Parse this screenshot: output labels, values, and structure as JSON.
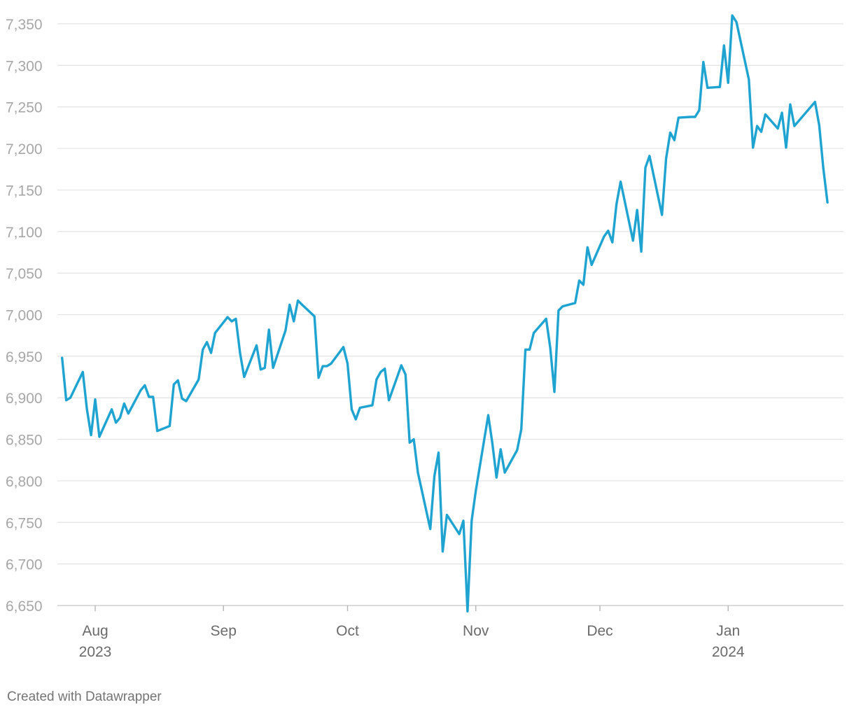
{
  "chart_data": {
    "type": "line",
    "title": "",
    "xlabel": "",
    "ylabel": "",
    "ylim": [
      6650,
      7350
    ],
    "yticks": [
      "6,650",
      "6,700",
      "6,750",
      "6,800",
      "6,850",
      "6,900",
      "6,950",
      "7,000",
      "7,050",
      "7,100",
      "7,150",
      "7,200",
      "7,250",
      "7,300",
      "7,350"
    ],
    "xticks": [
      {
        "date": "2023-08-01",
        "label": "Aug",
        "sublabel": "2023"
      },
      {
        "date": "2023-09-01",
        "label": "Sep",
        "sublabel": ""
      },
      {
        "date": "2023-10-01",
        "label": "Oct",
        "sublabel": ""
      },
      {
        "date": "2023-11-01",
        "label": "Nov",
        "sublabel": ""
      },
      {
        "date": "2023-12-01",
        "label": "Dec",
        "sublabel": ""
      },
      {
        "date": "2024-01-01",
        "label": "Jan",
        "sublabel": "2024"
      }
    ],
    "grid": true,
    "line_color": "#1fa3d0",
    "series": [
      {
        "x": [
          "2023-07-24",
          "2023-07-25",
          "2023-07-26",
          "2023-07-29",
          "2023-07-30",
          "2023-07-31",
          "2023-08-01",
          "2023-08-02",
          "2023-08-05",
          "2023-08-06",
          "2023-08-07",
          "2023-08-08",
          "2023-08-09",
          "2023-08-12",
          "2023-08-13",
          "2023-08-14",
          "2023-08-15",
          "2023-08-16",
          "2023-08-19",
          "2023-08-20",
          "2023-08-21",
          "2023-08-22",
          "2023-08-23",
          "2023-08-26",
          "2023-08-27",
          "2023-08-28",
          "2023-08-29",
          "2023-08-30",
          "2023-09-02",
          "2023-09-03",
          "2023-09-04",
          "2023-09-05",
          "2023-09-06",
          "2023-09-09",
          "2023-09-10",
          "2023-09-11",
          "2023-09-12",
          "2023-09-13",
          "2023-09-16",
          "2023-09-17",
          "2023-09-18",
          "2023-09-19",
          "2023-09-20",
          "2023-09-23",
          "2023-09-24",
          "2023-09-25",
          "2023-09-26",
          "2023-09-27",
          "2023-09-30",
          "2023-10-01",
          "2023-10-02",
          "2023-10-03",
          "2023-10-04",
          "2023-10-07",
          "2023-10-08",
          "2023-10-09",
          "2023-10-10",
          "2023-10-11",
          "2023-10-14",
          "2023-10-15",
          "2023-10-16",
          "2023-10-17",
          "2023-10-18",
          "2023-10-21",
          "2023-10-22",
          "2023-10-23",
          "2023-10-24",
          "2023-10-25",
          "2023-10-28",
          "2023-10-29",
          "2023-10-30",
          "2023-10-31",
          "2023-11-01",
          "2023-11-04",
          "2023-11-05",
          "2023-11-06",
          "2023-11-07",
          "2023-11-08",
          "2023-11-11",
          "2023-11-12",
          "2023-11-13",
          "2023-11-14",
          "2023-11-15",
          "2023-11-18",
          "2023-11-19",
          "2023-11-20",
          "2023-11-21",
          "2023-11-22",
          "2023-11-25",
          "2023-11-26",
          "2023-11-27",
          "2023-11-28",
          "2023-11-29",
          "2023-12-02",
          "2023-12-03",
          "2023-12-04",
          "2023-12-05",
          "2023-12-06",
          "2023-12-09",
          "2023-12-10",
          "2023-12-11",
          "2023-12-12",
          "2023-12-13",
          "2023-12-16",
          "2023-12-17",
          "2023-12-18",
          "2023-12-19",
          "2023-12-20",
          "2023-12-23",
          "2023-12-24",
          "2023-12-25",
          "2023-12-26",
          "2023-12-27",
          "2023-12-30",
          "2023-12-31",
          "2024-01-01",
          "2024-01-02",
          "2024-01-03",
          "2024-01-06",
          "2024-01-07",
          "2024-01-08",
          "2024-01-09",
          "2024-01-10",
          "2024-01-13",
          "2024-01-14",
          "2024-01-15",
          "2024-01-16",
          "2024-01-17",
          "2024-01-22",
          "2024-01-23",
          "2024-01-24",
          "2024-01-25"
        ],
        "values": [
          6948,
          6897,
          6900,
          6931,
          6886,
          6855,
          6898,
          6853,
          6886,
          6870,
          6876,
          6893,
          6881,
          6909,
          6915,
          6901,
          6901,
          6860,
          6866,
          6916,
          6921,
          6899,
          6896,
          6922,
          6958,
          6967,
          6954,
          6978,
          6997,
          6992,
          6995,
          6954,
          6925,
          6963,
          6934,
          6936,
          6982,
          6936,
          6981,
          7012,
          6992,
          7017,
          7012,
          6998,
          6924,
          6938,
          6938,
          6941,
          6961,
          6941,
          6886,
          6874,
          6888,
          6891,
          6922,
          6931,
          6935,
          6897,
          6939,
          6928,
          6846,
          6850,
          6810,
          6742,
          6806,
          6834,
          6715,
          6759,
          6736,
          6752,
          6643,
          6752,
          6788,
          6879,
          6845,
          6804,
          6838,
          6810,
          6837,
          6862,
          6958,
          6958,
          6978,
          6995,
          6960,
          6907,
          7005,
          7010,
          7014,
          7041,
          7036,
          7081,
          7060,
          7094,
          7101,
          7087,
          7133,
          7160,
          7089,
          7126,
          7076,
          7177,
          7191,
          7120,
          7188,
          7219,
          7210,
          7237,
          7238,
          7238,
          7246,
          7304,
          7273,
          7274,
          7324,
          7279,
          7360,
          7352,
          7283,
          7201,
          7227,
          7220,
          7241,
          7224,
          7243,
          7201,
          7253,
          7227,
          7256,
          7228,
          7176,
          7135
        ]
      }
    ]
  },
  "footer": {
    "credit": "Created with Datawrapper"
  }
}
